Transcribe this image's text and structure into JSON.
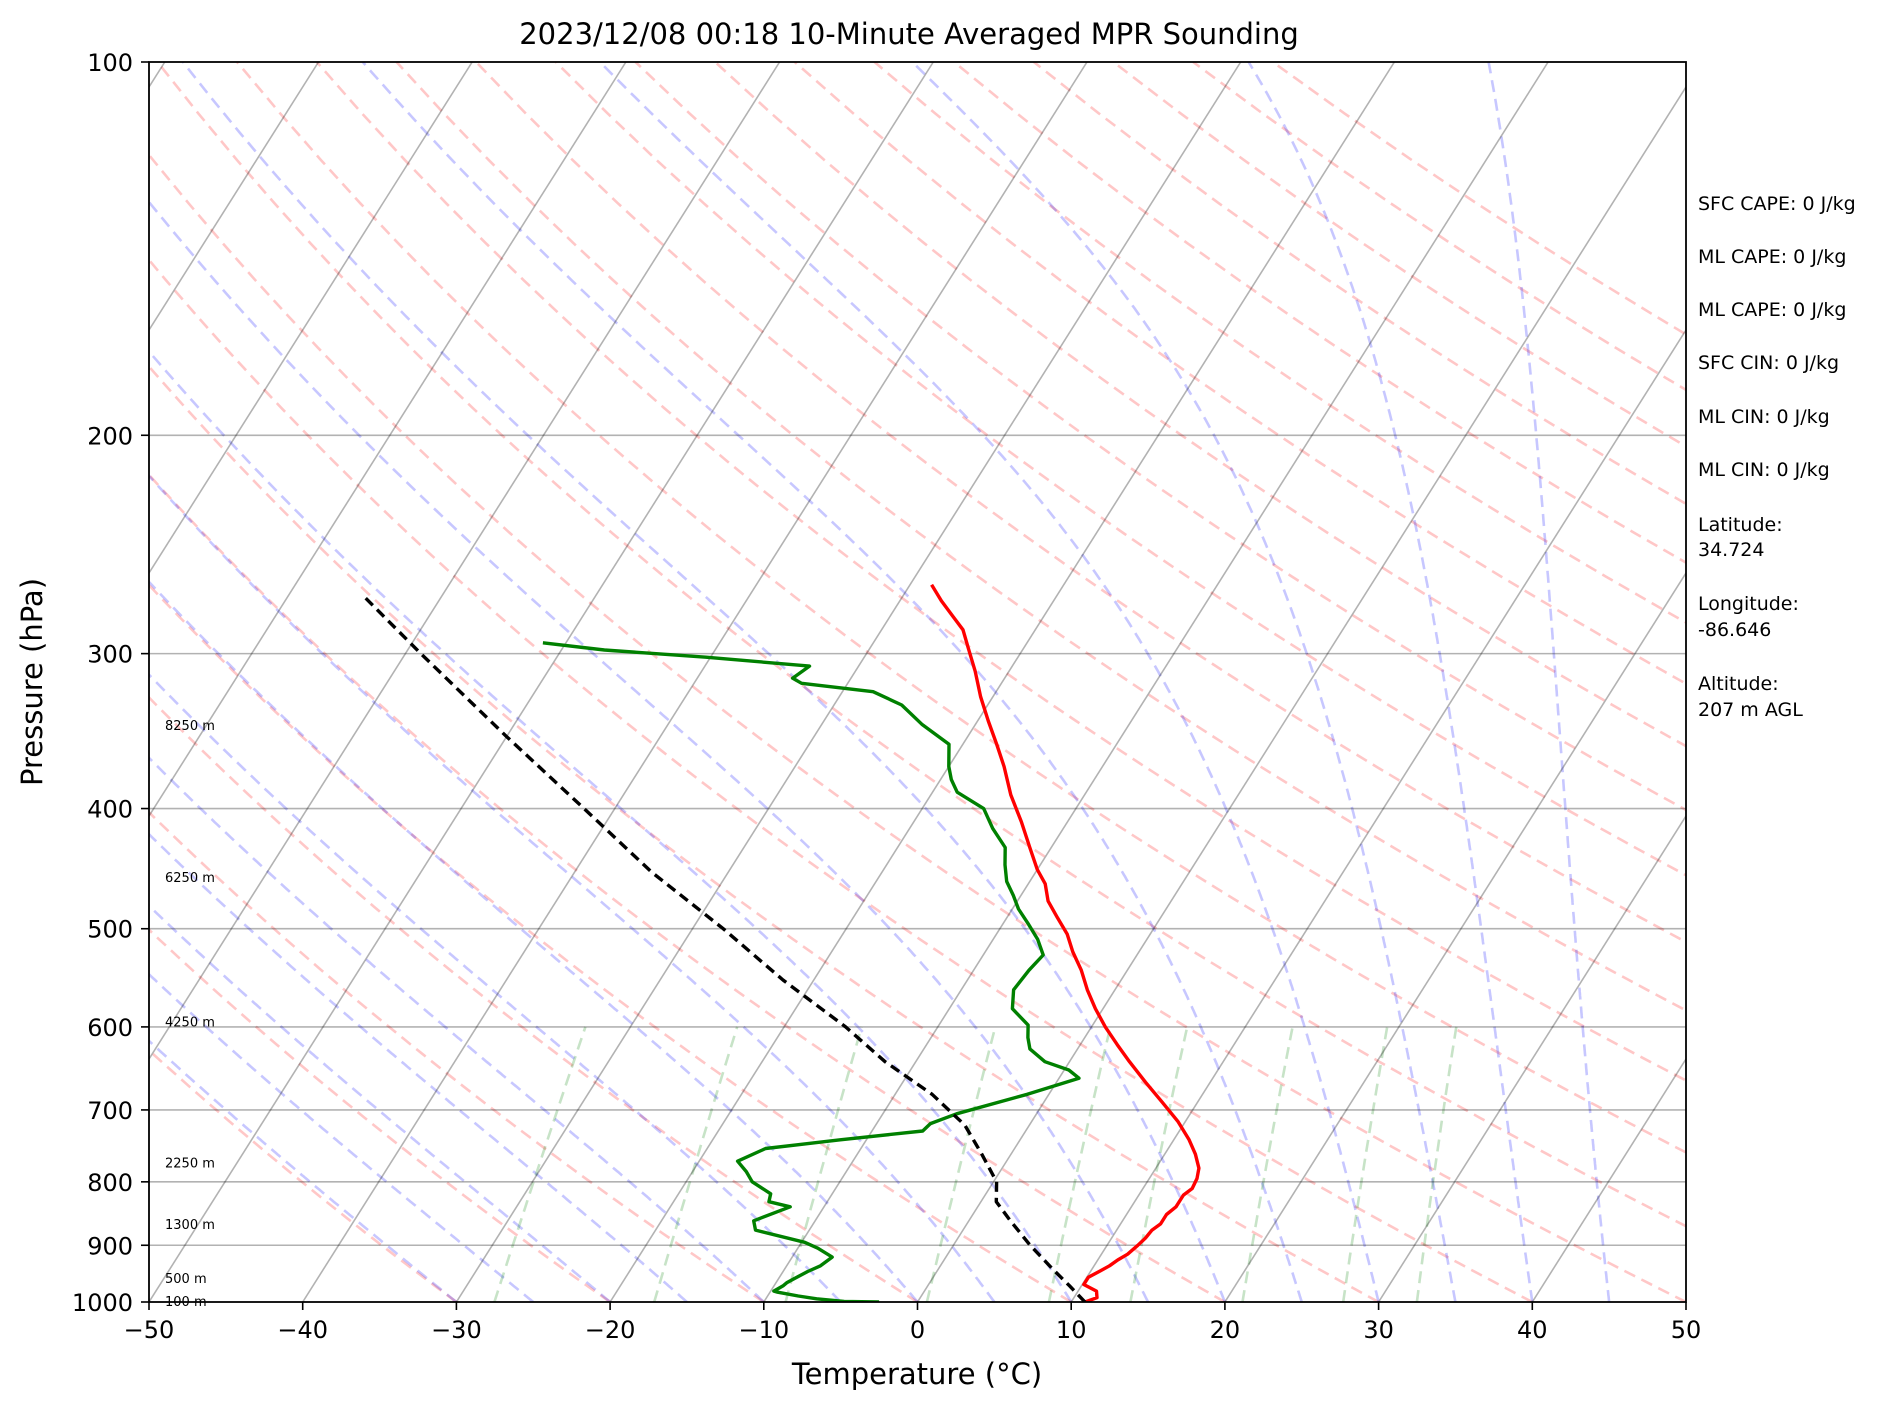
{
  "chart_data": {
    "type": "line",
    "subtype": "skew-t log-p sounding",
    "title": "2023/12/08 00:18 10-Minute Averaged MPR Sounding",
    "xlabel": "Temperature (°C)",
    "ylabel": "Pressure (hPa)",
    "xlim": [
      -50,
      50
    ],
    "ylim": [
      1000,
      100
    ],
    "y_scale": "log",
    "x_ticks": [
      "−50",
      "−40",
      "−30",
      "−20",
      "−10",
      "0",
      "10",
      "20",
      "30",
      "40",
      "50"
    ],
    "y_ticks": [
      "100",
      "200",
      "300",
      "400",
      "500",
      "600",
      "700",
      "800",
      "900",
      "1000"
    ],
    "grid": true,
    "height_labels": [
      {
        "text": "100 m",
        "p": 1000
      },
      {
        "text": "500 m",
        "p": 958
      },
      {
        "text": "1300 m",
        "p": 867
      },
      {
        "text": "2250 m",
        "p": 773
      },
      {
        "text": "4250 m",
        "p": 595
      },
      {
        "text": "6250 m",
        "p": 455
      },
      {
        "text": "8250 m",
        "p": 343
      }
    ],
    "series": [
      {
        "role": "temperature",
        "color": "#ff0000",
        "points": [
          [
            10.9,
            1000
          ],
          [
            11.5,
            992
          ],
          [
            11.2,
            980
          ],
          [
            10.1,
            968
          ],
          [
            10.1,
            955
          ],
          [
            10.6,
            944
          ],
          [
            11.0,
            935
          ],
          [
            11.3,
            925
          ],
          [
            11.7,
            915
          ],
          [
            12.0,
            900
          ],
          [
            12.2,
            888
          ],
          [
            12.3,
            875
          ],
          [
            12.6,
            865
          ],
          [
            12.6,
            850
          ],
          [
            12.9,
            838
          ],
          [
            12.9,
            820
          ],
          [
            13.2,
            810
          ],
          [
            13.1,
            795
          ],
          [
            12.8,
            780
          ],
          [
            12.0,
            760
          ],
          [
            11.0,
            740
          ],
          [
            9.5,
            715
          ],
          [
            7.7,
            690
          ],
          [
            5.8,
            665
          ],
          [
            3.9,
            640
          ],
          [
            2.4,
            620
          ],
          [
            0.9,
            600
          ],
          [
            -0.5,
            580
          ],
          [
            -1.8,
            560
          ],
          [
            -3.0,
            540
          ],
          [
            -4.3,
            522
          ],
          [
            -5.4,
            505
          ],
          [
            -6.7,
            490
          ],
          [
            -8.0,
            475
          ],
          [
            -8.9,
            460
          ],
          [
            -10.0,
            448
          ],
          [
            -11.4,
            430
          ],
          [
            -13.0,
            410
          ],
          [
            -14.8,
            390
          ],
          [
            -16.4,
            370
          ],
          [
            -17.8,
            355
          ],
          [
            -19.3,
            340
          ],
          [
            -20.8,
            325
          ],
          [
            -22.2,
            310
          ],
          [
            -23.6,
            297
          ],
          [
            -24.7,
            287
          ],
          [
            -25.9,
            280
          ],
          [
            -27.3,
            272
          ],
          [
            -28.6,
            264
          ]
        ]
      },
      {
        "role": "dewpoint",
        "color": "#008000",
        "points": [
          [
            -2.5,
            1000
          ],
          [
            -4.8,
            999
          ],
          [
            -6.7,
            994
          ],
          [
            -8.0,
            989
          ],
          [
            -9.5,
            982
          ],
          [
            -9.8,
            980
          ],
          [
            -9.4,
            970
          ],
          [
            -9.3,
            965
          ],
          [
            -9.0,
            958
          ],
          [
            -8.4,
            945
          ],
          [
            -7.8,
            935
          ],
          [
            -7.4,
            920
          ],
          [
            -8.7,
            905
          ],
          [
            -9.8,
            895
          ],
          [
            -13.5,
            875
          ],
          [
            -14.0,
            860
          ],
          [
            -12.2,
            838
          ],
          [
            -13.8,
            830
          ],
          [
            -14.0,
            818
          ],
          [
            -15.7,
            800
          ],
          [
            -16.5,
            785
          ],
          [
            -17.5,
            770
          ],
          [
            -16.2,
            752
          ],
          [
            -11.7,
            740
          ],
          [
            -6.7,
            728
          ],
          [
            -6.5,
            718
          ],
          [
            -5.2,
            705
          ],
          [
            -1.4,
            680
          ],
          [
            1.3,
            660
          ],
          [
            0.3,
            650
          ],
          [
            -1.6,
            640
          ],
          [
            -3.1,
            625
          ],
          [
            -3.7,
            612
          ],
          [
            -4.2,
            598
          ],
          [
            -5.9,
            580
          ],
          [
            -6.6,
            560
          ],
          [
            -6.4,
            540
          ],
          [
            -6.1,
            525
          ],
          [
            -7.1,
            510
          ],
          [
            -8.4,
            495
          ],
          [
            -9.6,
            482
          ],
          [
            -10.5,
            470
          ],
          [
            -11.5,
            458
          ],
          [
            -12.3,
            444
          ],
          [
            -13.0,
            430
          ],
          [
            -14.6,
            415
          ],
          [
            -16.0,
            400
          ],
          [
            -18.4,
            388
          ],
          [
            -19.3,
            379
          ],
          [
            -20.0,
            370
          ],
          [
            -20.9,
            355
          ],
          [
            -23.5,
            342
          ],
          [
            -25.6,
            330
          ],
          [
            -28.0,
            322
          ],
          [
            -33.0,
            317
          ],
          [
            -33.8,
            314
          ],
          [
            -33.2,
            307
          ],
          [
            -40.3,
            302
          ],
          [
            -47.2,
            298
          ],
          [
            -51.5,
            294
          ]
        ]
      },
      {
        "role": "parcel-profile",
        "color": "#000000",
        "dashed": true,
        "points": [
          [
            10.9,
            1000
          ],
          [
            9.2,
            970
          ],
          [
            7.4,
            940
          ],
          [
            5.0,
            900
          ],
          [
            2.7,
            860
          ],
          [
            1.0,
            830
          ],
          [
            0.2,
            800
          ],
          [
            -1.9,
            760
          ],
          [
            -4.2,
            720
          ],
          [
            -7.6,
            680
          ],
          [
            -12.0,
            640
          ],
          [
            -16.0,
            600
          ],
          [
            -22.0,
            550
          ],
          [
            -28.0,
            500
          ],
          [
            -35.0,
            450
          ],
          [
            -42.0,
            400
          ],
          [
            -50.0,
            350
          ],
          [
            -59.0,
            300
          ],
          [
            -65.0,
            270
          ]
        ]
      }
    ]
  },
  "annotations": {
    "sfc_cape": "SFC CAPE: 0 J/kg",
    "ml_cape_1": "ML CAPE: 0 J/kg",
    "ml_cape_2": "ML CAPE: 0 J/kg",
    "sfc_cin": "SFC CIN: 0 J/kg",
    "ml_cin_1": "ML CIN: 0 J/kg",
    "ml_cin_2": "ML CIN: 0 J/kg",
    "latitude_label": "Latitude:",
    "latitude_value": "34.724",
    "longitude_label": "Longitude:",
    "longitude_value": "-86.646",
    "altitude_label": "Altitude:",
    "altitude_value": "207 m AGL"
  }
}
